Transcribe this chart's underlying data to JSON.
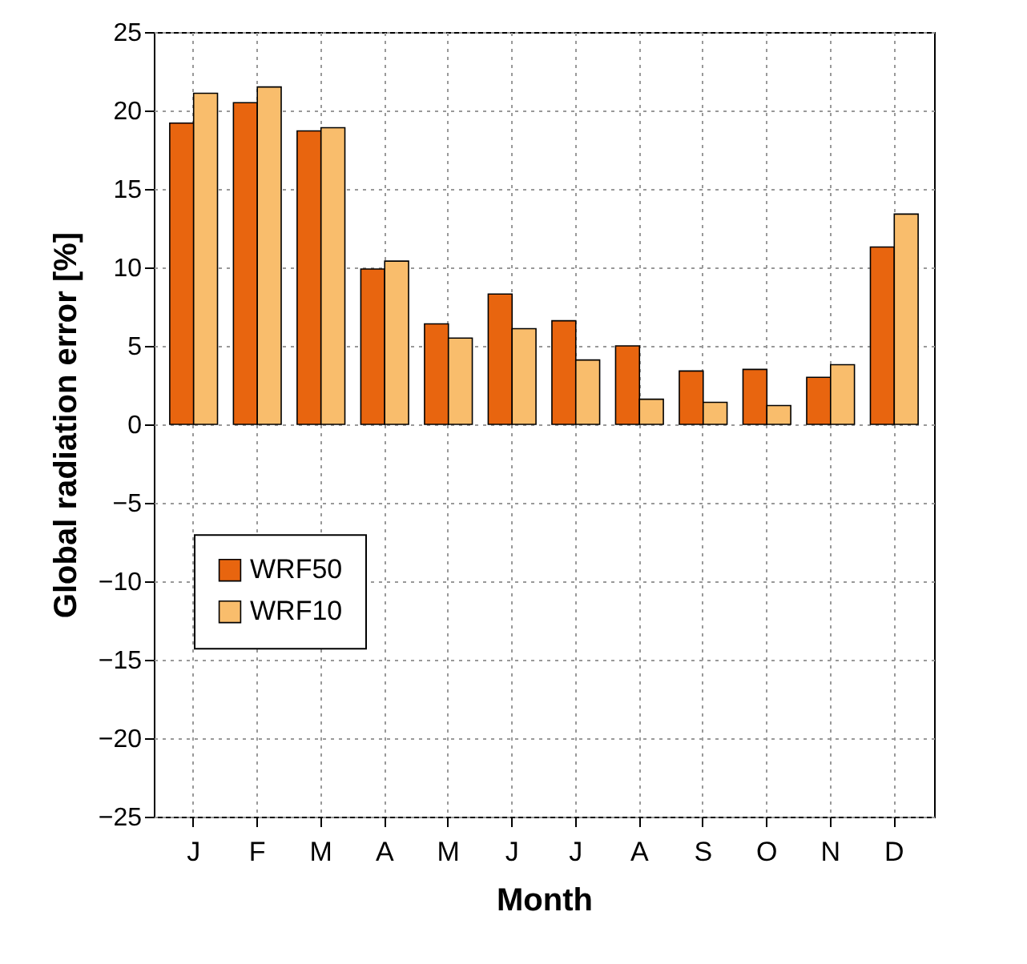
{
  "chart_data": {
    "type": "bar",
    "xlabel": "Month",
    "ylabel": "Global radiation error [%]",
    "categories": [
      "J",
      "F",
      "M",
      "A",
      "M",
      "J",
      "J",
      "A",
      "S",
      "O",
      "N",
      "D"
    ],
    "series": [
      {
        "name": "WRF50",
        "color": "#e8650f",
        "values": [
          19.2,
          20.5,
          18.7,
          9.9,
          6.4,
          8.3,
          6.6,
          5.0,
          3.4,
          3.5,
          3.0,
          11.3
        ]
      },
      {
        "name": "WRF10",
        "color": "#f9bd6c",
        "values": [
          21.1,
          21.5,
          18.9,
          10.4,
          5.5,
          6.1,
          4.1,
          1.6,
          1.4,
          1.2,
          3.8,
          13.4
        ]
      }
    ],
    "ylim": [
      -25,
      25
    ],
    "yticks": [
      -25,
      -20,
      -15,
      -10,
      -5,
      0,
      5,
      10,
      15,
      20,
      25
    ],
    "grid": true,
    "legend": "left"
  }
}
